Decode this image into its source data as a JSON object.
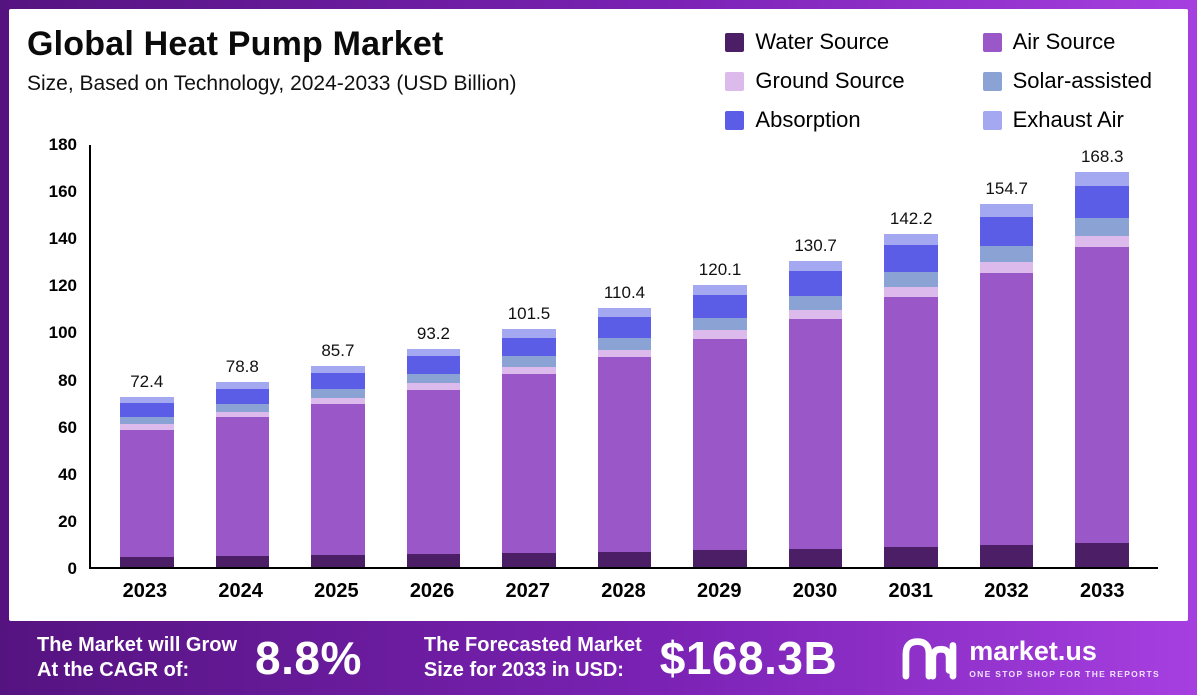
{
  "header": {
    "title": "Global Heat Pump Market",
    "subtitle": "Size, Based on Technology, 2024-2033 (USD Billion)"
  },
  "chart_data": {
    "type": "bar",
    "stacked": true,
    "title": "Global Heat Pump Market Size, Based on Technology, 2024-2033 (USD Billion)",
    "xlabel": "",
    "ylabel": "",
    "grid": false,
    "legend_position": "top-right",
    "ylim": [
      0,
      180
    ],
    "yticks": [
      0,
      20,
      40,
      60,
      80,
      100,
      120,
      140,
      160,
      180
    ],
    "categories": [
      "2023",
      "2024",
      "2025",
      "2026",
      "2027",
      "2028",
      "2029",
      "2030",
      "2031",
      "2032",
      "2033"
    ],
    "totals": [
      72.4,
      78.8,
      85.7,
      93.2,
      101.5,
      110.4,
      120.1,
      130.7,
      142.2,
      154.7,
      168.3
    ],
    "series": [
      {
        "name": "Water Source",
        "color": "#4b1e66",
        "values": [
          4.3,
          4.7,
          5.1,
          5.6,
          6.1,
          6.6,
          7.2,
          7.8,
          8.5,
          9.3,
          10.1
        ]
      },
      {
        "name": "Air Source",
        "color": "#9a57c7",
        "values": [
          54.3,
          59.1,
          64.3,
          69.9,
          76.1,
          82.8,
          90.1,
          98.0,
          106.7,
          116.0,
          126.2
        ]
      },
      {
        "name": "Ground Source",
        "color": "#ddbaec",
        "values": [
          2.2,
          2.4,
          2.6,
          2.8,
          3.0,
          3.3,
          3.6,
          3.9,
          4.3,
          4.6,
          5.0
        ]
      },
      {
        "name": "Solar-assisted",
        "color": "#8ba3d4",
        "values": [
          3.3,
          3.5,
          3.9,
          4.2,
          4.6,
          5.0,
          5.4,
          5.9,
          6.4,
          7.0,
          7.6
        ]
      },
      {
        "name": "Absorption",
        "color": "#5c5de6",
        "values": [
          5.8,
          6.3,
          6.9,
          7.5,
          8.1,
          8.8,
          9.6,
          10.5,
          11.4,
          12.4,
          13.5
        ]
      },
      {
        "name": "Exhaust Air",
        "color": "#a3a8f0",
        "values": [
          2.5,
          2.8,
          2.9,
          3.2,
          3.6,
          3.9,
          4.2,
          4.6,
          4.9,
          5.4,
          5.9
        ]
      }
    ]
  },
  "footer": {
    "cagr_label_line1": "The Market will Grow",
    "cagr_label_line2": "At the CAGR of:",
    "cagr_value": "8.8%",
    "forecast_label_line1": "The Forecasted Market",
    "forecast_label_line2": "Size for 2033 in USD:",
    "forecast_value": "$168.3B",
    "brand": "market.us",
    "brand_tagline": "ONE STOP SHOP FOR THE REPORTS"
  },
  "colors": {
    "banner_gradient_start": "#551380",
    "banner_gradient_end": "#a63fe0"
  }
}
